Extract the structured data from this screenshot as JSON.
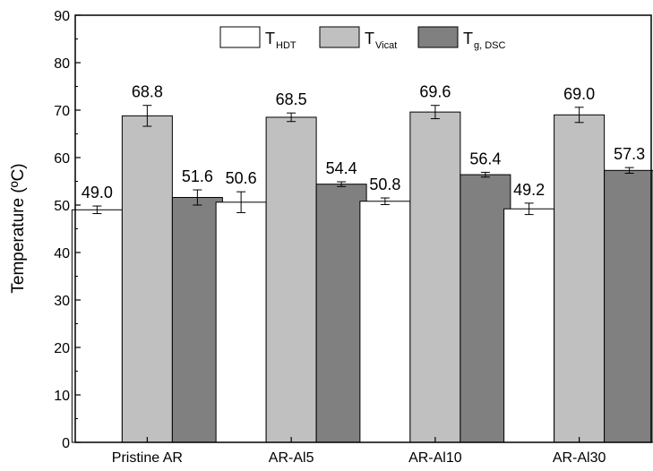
{
  "chart_data": {
    "type": "bar",
    "categories": [
      "Pristine AR",
      "AR-Al5",
      "AR-Al10",
      "AR-Al30"
    ],
    "series": [
      {
        "name": "T",
        "sub": "HDT",
        "color": "#ffffff",
        "values": [
          49.0,
          50.6,
          50.8,
          49.2
        ],
        "errors": [
          0.8,
          2.2,
          0.7,
          1.2
        ],
        "labels": [
          "49.0",
          "50.6",
          "50.8",
          "49.2"
        ]
      },
      {
        "name": "T",
        "sub": "Vicat",
        "color": "#c0c0c0",
        "values": [
          68.8,
          68.5,
          69.6,
          69.0
        ],
        "errors": [
          2.2,
          0.9,
          1.4,
          1.6
        ],
        "labels": [
          "68.8",
          "68.5",
          "69.6",
          "69.0"
        ]
      },
      {
        "name": "T",
        "sub": "g, DSC",
        "color": "#808080",
        "values": [
          51.6,
          54.4,
          56.4,
          57.3
        ],
        "errors": [
          1.6,
          0.5,
          0.5,
          0.6
        ],
        "labels": [
          "51.6",
          "54.4",
          "56.4",
          "57.3"
        ]
      }
    ],
    "ylabel": "Temperature (ºC)",
    "ylim": [
      0,
      90
    ],
    "yticks": [
      0,
      10,
      20,
      30,
      40,
      50,
      60,
      70,
      80,
      90
    ],
    "grid": false,
    "legend_position": "top-center"
  }
}
